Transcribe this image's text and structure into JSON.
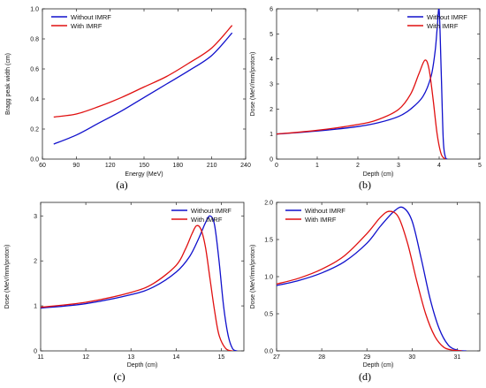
{
  "colors": {
    "without": "#1010cc",
    "with": "#e01010"
  },
  "chart_data": [
    {
      "type": "line",
      "panel_label": "(a)",
      "xlabel": "Energy (MeV)",
      "ylabel": "Bragg peak width (cm)",
      "xlim": [
        60,
        240
      ],
      "ylim": [
        0,
        1.0
      ],
      "xticks": [
        60,
        90,
        120,
        150,
        180,
        210,
        240
      ],
      "xtick_labels": [
        "60",
        "90",
        "120",
        "150",
        "180",
        "210",
        "240"
      ],
      "yticks": [
        0,
        0.2,
        0.4,
        0.6,
        0.8,
        1.0
      ],
      "ytick_labels": [
        "0.0",
        "0.2",
        "0.4",
        "0.6",
        "0.8",
        "1.0"
      ],
      "legend_position": "top-left",
      "series": [
        {
          "name": "Without IMRF",
          "color": "without",
          "x": [
            70,
            90,
            110,
            130,
            150,
            170,
            190,
            210,
            228
          ],
          "y": [
            0.1,
            0.16,
            0.24,
            0.32,
            0.41,
            0.5,
            0.59,
            0.69,
            0.84
          ]
        },
        {
          "name": "With IMRF",
          "color": "with",
          "x": [
            70,
            90,
            110,
            130,
            150,
            170,
            190,
            210,
            228
          ],
          "y": [
            0.28,
            0.3,
            0.35,
            0.41,
            0.48,
            0.55,
            0.64,
            0.74,
            0.89
          ]
        }
      ]
    },
    {
      "type": "line",
      "panel_label": "(b)",
      "xlabel": "Depth (cm)",
      "ylabel": "Dose (MeV/mm/proton)",
      "xlim": [
        0,
        5
      ],
      "ylim": [
        0,
        6
      ],
      "xticks": [
        0,
        1,
        2,
        3,
        4,
        5
      ],
      "xtick_labels": [
        "0",
        "1",
        "2",
        "3",
        "4",
        "5"
      ],
      "yticks": [
        0,
        1,
        2,
        3,
        4,
        5,
        6
      ],
      "ytick_labels": [
        "0",
        "1",
        "2",
        "3",
        "4",
        "5",
        "6"
      ],
      "legend_position": "top-right",
      "series": [
        {
          "name": "Without IMRF",
          "color": "without",
          "x": [
            0,
            1,
            2,
            2.5,
            3,
            3.3,
            3.6,
            3.8,
            3.9,
            3.95,
            4.0,
            4.05,
            4.1,
            4.15,
            4.2
          ],
          "y": [
            1.0,
            1.12,
            1.3,
            1.45,
            1.7,
            2.0,
            2.5,
            3.3,
            4.3,
            5.2,
            5.95,
            3.5,
            0.8,
            0.1,
            0
          ]
        },
        {
          "name": "With IMRF",
          "color": "with",
          "x": [
            0,
            1,
            2,
            2.5,
            3,
            3.3,
            3.5,
            3.65,
            3.75,
            3.85,
            3.95,
            4.05,
            4.15
          ],
          "y": [
            1.0,
            1.15,
            1.38,
            1.58,
            1.98,
            2.6,
            3.4,
            3.95,
            3.6,
            2.4,
            1.0,
            0.2,
            0
          ]
        }
      ]
    },
    {
      "type": "line",
      "panel_label": "(c)",
      "xlabel": "Depth (cm)",
      "ylabel": "Dose (MeV/mm/proton)",
      "xlim": [
        11,
        15.5
      ],
      "ylim": [
        0,
        3.3
      ],
      "xticks": [
        11,
        12,
        13,
        14,
        15
      ],
      "xtick_labels": [
        "11",
        "12",
        "13",
        "14",
        "15"
      ],
      "yticks": [
        0,
        1,
        2,
        3
      ],
      "ytick_labels": [
        "0",
        "1",
        "2",
        "3"
      ],
      "legend_position": "top-right",
      "series": [
        {
          "name": "Without IMRF",
          "color": "without",
          "x": [
            11,
            12,
            13,
            13.5,
            14,
            14.3,
            14.5,
            14.65,
            14.75,
            14.85,
            14.95,
            15.05,
            15.15,
            15.25,
            15.35
          ],
          "y": [
            0.95,
            1.05,
            1.25,
            1.42,
            1.75,
            2.1,
            2.5,
            2.85,
            3.0,
            2.8,
            2.0,
            1.0,
            0.35,
            0.05,
            0
          ]
        },
        {
          "name": "With IMRF",
          "color": "with",
          "x": [
            11,
            12,
            13,
            13.5,
            14,
            14.2,
            14.35,
            14.45,
            14.55,
            14.65,
            14.75,
            14.85,
            14.95,
            15.1,
            15.25
          ],
          "y": [
            0.97,
            1.08,
            1.3,
            1.5,
            1.9,
            2.25,
            2.6,
            2.78,
            2.7,
            2.3,
            1.6,
            0.9,
            0.35,
            0.05,
            0
          ]
        }
      ]
    },
    {
      "type": "line",
      "panel_label": "(d)",
      "xlabel": "Depth (cm)",
      "ylabel": "Dose (MeV/mm/proton)",
      "xlim": [
        27,
        31.5
      ],
      "ylim": [
        0,
        2.0
      ],
      "xticks": [
        27,
        28,
        29,
        30,
        31
      ],
      "xtick_labels": [
        "27",
        "28",
        "29",
        "30",
        "31"
      ],
      "yticks": [
        0,
        0.5,
        1.0,
        1.5,
        2.0
      ],
      "ytick_labels": [
        "0.0",
        "0.5",
        "1.0",
        "1.5",
        "2.0"
      ],
      "legend_position": "top-left",
      "series": [
        {
          "name": "Without IMRF",
          "color": "without",
          "x": [
            27,
            27.5,
            28,
            28.5,
            29,
            29.3,
            29.6,
            29.8,
            30,
            30.2,
            30.4,
            30.6,
            30.8,
            31,
            31.2
          ],
          "y": [
            0.88,
            0.95,
            1.05,
            1.2,
            1.45,
            1.68,
            1.88,
            1.93,
            1.75,
            1.25,
            0.7,
            0.3,
            0.08,
            0.01,
            0
          ]
        },
        {
          "name": "With IMRF",
          "color": "with",
          "x": [
            27,
            27.5,
            28,
            28.5,
            29,
            29.3,
            29.5,
            29.7,
            29.9,
            30.1,
            30.3,
            30.5,
            30.7,
            30.9,
            31.1
          ],
          "y": [
            0.9,
            0.98,
            1.1,
            1.28,
            1.58,
            1.8,
            1.88,
            1.8,
            1.45,
            0.95,
            0.5,
            0.2,
            0.05,
            0.01,
            0
          ]
        }
      ]
    }
  ]
}
